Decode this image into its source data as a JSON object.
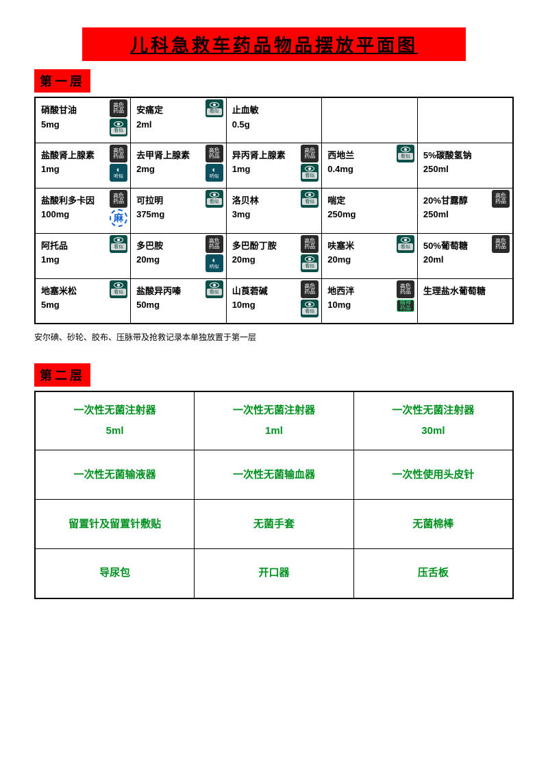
{
  "title": "儿科急救车药品物品摆放平面图",
  "section1_label": "第一层",
  "section2_label": "第二层",
  "footnote": "安尔碘、砂轮、胶布、压脉带及抢救记录本单独放置于第一层",
  "colors": {
    "banner_bg": "#ff0000",
    "title_text": "#000000",
    "border": "#000000",
    "layer2_text": "#009020",
    "badge_highrisk_bg": "#2a2a2a",
    "badge_look_bg": "#0a5048",
    "badge_ma_text": "#1560d0",
    "badge_mental_text": "#3be080"
  },
  "layer1": [
    [
      {
        "name": "硝酸甘油",
        "dose": "5mg",
        "badges": [
          "highrisk",
          "look"
        ]
      },
      {
        "name": "安痛定",
        "dose": "2ml",
        "badges": [
          "look"
        ]
      },
      {
        "name": "止血敏",
        "dose": "0.5g",
        "badges": []
      },
      {
        "name": "",
        "dose": "",
        "badges": []
      },
      {
        "name": "",
        "dose": "",
        "badges": []
      }
    ],
    [
      {
        "name": "盐酸肾上腺素",
        "dose": "1mg",
        "badges": [
          "highrisk",
          "listen"
        ]
      },
      {
        "name": "去甲肾上腺素",
        "dose": "2mg",
        "badges": [
          "highrisk",
          "listen"
        ]
      },
      {
        "name": "异丙肾上腺素",
        "dose": "1mg",
        "badges": [
          "highrisk",
          "look"
        ]
      },
      {
        "name": "西地兰",
        "dose": "0.4mg",
        "badges": [
          "look"
        ]
      },
      {
        "name": "5%碳酸氢钠",
        "dose": "250ml",
        "badges": []
      }
    ],
    [
      {
        "name": "盐酸利多卡因",
        "dose": "100mg",
        "badges": [
          "highrisk",
          "ma"
        ]
      },
      {
        "name": "可拉明",
        "dose": "375mg",
        "badges": [
          "look"
        ]
      },
      {
        "name": "洛贝林",
        "dose": "3mg",
        "badges": [
          "look"
        ]
      },
      {
        "name": "喘定",
        "dose": "250mg",
        "badges": []
      },
      {
        "name": "20%甘露醇",
        "dose": "250ml",
        "badges": [
          "highrisk"
        ]
      }
    ],
    [
      {
        "name": "阿托品",
        "dose": "1mg",
        "badges": [
          "look"
        ]
      },
      {
        "name": "多巴胺",
        "dose": "20mg",
        "badges": [
          "highrisk",
          "listen"
        ]
      },
      {
        "name": "多巴酚丁胺",
        "dose": "20mg",
        "badges": [
          "highrisk",
          "look"
        ]
      },
      {
        "name": "呋塞米",
        "dose": "20mg",
        "badges": [
          "look"
        ]
      },
      {
        "name": "50%葡萄糖",
        "dose": "20ml",
        "badges": [
          "highrisk"
        ]
      }
    ],
    [
      {
        "name": "地塞米松",
        "dose": "5mg",
        "badges": [
          "look"
        ]
      },
      {
        "name": "盐酸异丙嗪",
        "dose": "50mg",
        "badges": [
          "look"
        ]
      },
      {
        "name": "山莨菪碱",
        "dose": "10mg",
        "badges": [
          "highrisk",
          "look"
        ]
      },
      {
        "name": "地西泮",
        "dose": "10mg",
        "badges": [
          "highrisk",
          "mental"
        ]
      },
      {
        "name": "生理盐水葡萄糖",
        "dose": "",
        "badges": []
      }
    ]
  ],
  "layer2": [
    [
      {
        "name": "一次性无菌注射器",
        "dose": "5ml"
      },
      {
        "name": "一次性无菌注射器",
        "dose": "1ml"
      },
      {
        "name": "一次性无菌注射器",
        "dose": "30ml"
      }
    ],
    [
      {
        "name": "一次性无菌输液器",
        "dose": ""
      },
      {
        "name": "一次性无菌输血器",
        "dose": ""
      },
      {
        "name": "一次性使用头皮针",
        "dose": ""
      }
    ],
    [
      {
        "name": "留置针及留置针敷贴",
        "dose": ""
      },
      {
        "name": "无菌手套",
        "dose": ""
      },
      {
        "name": "无菌棉棒",
        "dose": ""
      }
    ],
    [
      {
        "name": "导尿包",
        "dose": ""
      },
      {
        "name": "开口器",
        "dose": ""
      },
      {
        "name": "压舌板",
        "dose": ""
      }
    ]
  ],
  "badge_labels": {
    "highrisk_l1": "高危",
    "highrisk_l2": "药品",
    "look": "看似",
    "listen": "听似",
    "ma": "麻",
    "mental_l1": "精神",
    "mental_l2": "药品"
  }
}
